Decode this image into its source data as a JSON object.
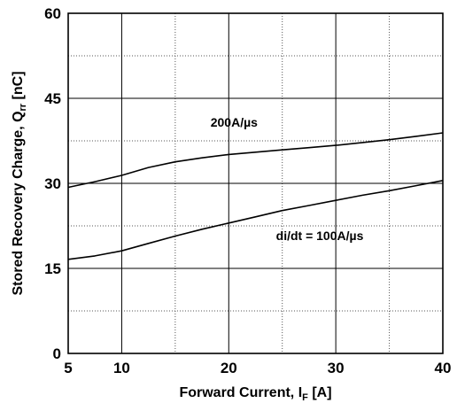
{
  "chart_data": {
    "type": "line",
    "xlabel": {
      "main": "Forward Current, I",
      "sub": "F",
      "unit": " [A]"
    },
    "ylabel": {
      "main": "Stored Recovery Charge, Q",
      "sub": "rr",
      "unit": " [nC]"
    },
    "xlim": [
      5,
      40
    ],
    "ylim": [
      0,
      60
    ],
    "x_ticks": [
      5,
      10,
      20,
      30,
      40
    ],
    "x_minor_grid": [
      15,
      25,
      35
    ],
    "y_ticks": [
      0,
      15,
      30,
      45,
      60
    ],
    "y_minor_grid": [
      7.5,
      22.5,
      37.5,
      52.5
    ],
    "grid": true,
    "series": [
      {
        "name": "200A/µs",
        "points": [
          [
            5,
            29.3
          ],
          [
            7.5,
            30.3
          ],
          [
            10,
            31.4
          ],
          [
            12.5,
            32.8
          ],
          [
            15,
            33.8
          ],
          [
            17.5,
            34.5
          ],
          [
            20,
            35.1
          ],
          [
            22.5,
            35.5
          ],
          [
            25,
            35.9
          ],
          [
            27.5,
            36.3
          ],
          [
            30,
            36.7
          ],
          [
            32.5,
            37.2
          ],
          [
            35,
            37.7
          ],
          [
            37.5,
            38.3
          ],
          [
            40,
            38.9
          ]
        ]
      },
      {
        "name": "di/dt = 100A/µs",
        "points": [
          [
            5,
            16.6
          ],
          [
            7.5,
            17.2
          ],
          [
            10,
            18.1
          ],
          [
            12.5,
            19.4
          ],
          [
            15,
            20.7
          ],
          [
            17.5,
            21.9
          ],
          [
            20,
            23.0
          ],
          [
            22.5,
            24.1
          ],
          [
            25,
            25.2
          ],
          [
            27.5,
            26.1
          ],
          [
            30,
            27.0
          ],
          [
            32.5,
            27.9
          ],
          [
            35,
            28.7
          ],
          [
            37.5,
            29.6
          ],
          [
            40,
            30.5
          ]
        ]
      }
    ],
    "annotations": [
      {
        "text": "200A/µs",
        "x": 20.5,
        "y": 40
      },
      {
        "text": "di/dt = 100A/µs",
        "x": 28.5,
        "y": 20
      }
    ]
  }
}
